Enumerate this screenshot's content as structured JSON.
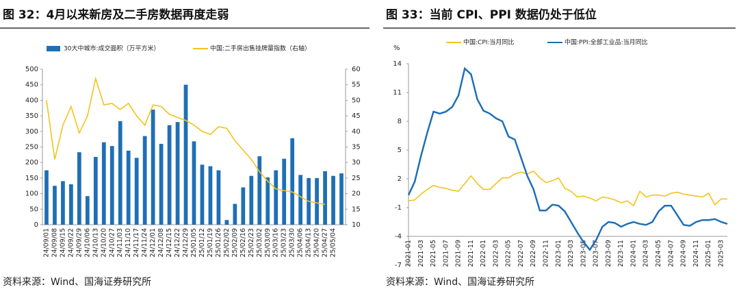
{
  "chart_data": [
    {
      "type": "bar",
      "title": "图 32：4月以来新房及二手房数据再度走弱",
      "source": "资料来源：Wind、国海证券研究所",
      "categories": [
        "24/09/01",
        "24/09/08",
        "24/09/15",
        "24/09/22",
        "24/09/29",
        "24/10/06",
        "24/10/13",
        "24/10/20",
        "24/10/27",
        "24/11/03",
        "24/11/10",
        "24/11/17",
        "24/11/24",
        "24/12/01",
        "24/12/08",
        "24/12/15",
        "24/12/22",
        "24/12/29",
        "25/01/05",
        "25/01/12",
        "25/01/19",
        "25/01/26",
        "25/02/02",
        "25/02/09",
        "25/02/16",
        "25/02/23",
        "25/03/02",
        "25/03/09",
        "25/03/16",
        "25/03/23",
        "25/03/30",
        "25/04/06",
        "25/04/13",
        "25/04/20",
        "25/04/27",
        "25/05/04",
        null
      ],
      "series": [
        {
          "name": "30大中城市:成交面积（万平方米）",
          "type": "bar",
          "color": "#1f6fb5",
          "values": [
            175,
            125,
            140,
            130,
            233,
            92,
            218,
            265,
            253,
            333,
            238,
            215,
            285,
            370,
            260,
            320,
            330,
            450,
            268,
            193,
            188,
            175,
            15,
            67,
            120,
            157,
            220,
            152,
            175,
            212,
            278,
            160,
            150,
            150,
            172,
            157,
            165
          ]
        },
        {
          "name": "中国:二手房出售挂牌量指数（右轴）",
          "type": "line",
          "axis": "y2",
          "color": "#f2c31b",
          "values": [
            50,
            31,
            42,
            48,
            39.5,
            45,
            57,
            48.5,
            49,
            47,
            49,
            45,
            42,
            48.5,
            48,
            45.5,
            44.5,
            43.5,
            42,
            40,
            39,
            41.5,
            41,
            37,
            34,
            31,
            27,
            24,
            21.5,
            21,
            20.5,
            19,
            17.5,
            17,
            16.5,
            null,
            null
          ]
        }
      ],
      "ylim": [
        0,
        500
      ],
      "yticks": [
        0,
        50,
        100,
        150,
        200,
        250,
        300,
        350,
        400,
        450,
        500
      ],
      "y2lim": [
        10,
        60
      ],
      "y2ticks": [
        10,
        15,
        20,
        25,
        30,
        35,
        40,
        45,
        50,
        55,
        60
      ],
      "grid": false
    },
    {
      "type": "line",
      "title": "图 33：当前 CPI、PPI 数据仍处于低位",
      "source": "资料来源：Wind、国海证券研究所",
      "ylabel": "%",
      "categories": [
        "2021-01",
        null,
        "2021-03",
        null,
        "2021-05",
        null,
        "2021-07",
        null,
        "2021-09",
        null,
        "2021-11",
        null,
        "2022-01",
        null,
        "2022-03",
        null,
        "2022-05",
        null,
        "2022-07",
        null,
        "2022-09",
        null,
        "2022-11",
        null,
        "2023-01",
        null,
        "2023-03",
        null,
        "2023-05",
        null,
        "2023-07",
        null,
        "2023-09",
        null,
        "2023-11",
        null,
        "2024-01",
        null,
        "2024-03",
        null,
        "2024-05",
        null,
        "2024-07",
        null,
        "2024-09",
        null,
        "2024-11",
        null,
        "2025-01",
        null,
        "2025-03",
        null
      ],
      "series": [
        {
          "name": "中国:CPI:当月同比",
          "color": "#f2c31b",
          "values": [
            -0.3,
            -0.2,
            0.4,
            0.9,
            1.3,
            1.1,
            1.0,
            0.8,
            0.7,
            1.5,
            2.3,
            1.5,
            0.9,
            0.9,
            1.5,
            2.1,
            2.1,
            2.5,
            2.7,
            2.5,
            2.8,
            2.1,
            1.6,
            1.8,
            2.1,
            1.0,
            0.7,
            0.1,
            0.2,
            0.0,
            -0.3,
            0.1,
            0.0,
            -0.2,
            -0.5,
            -0.3,
            -0.8,
            0.7,
            0.1,
            0.3,
            0.3,
            0.2,
            0.5,
            0.6,
            0.4,
            0.3,
            0.2,
            0.1,
            0.5,
            -0.7,
            -0.1,
            -0.1
          ]
        },
        {
          "name": "中国:PPI:全部工业品:当月同比",
          "color": "#1f6fb5",
          "values": [
            0.3,
            1.7,
            4.4,
            6.8,
            9.0,
            8.8,
            9.0,
            9.5,
            10.7,
            13.5,
            12.9,
            10.3,
            9.1,
            8.8,
            8.3,
            8.0,
            6.4,
            6.1,
            4.2,
            2.3,
            0.9,
            -1.3,
            -1.3,
            -0.7,
            -0.8,
            -1.4,
            -2.5,
            -3.6,
            -4.6,
            -5.4,
            -4.4,
            -3.0,
            -2.5,
            -2.6,
            -3.0,
            -2.7,
            -2.5,
            -2.7,
            -2.8,
            -2.5,
            -1.4,
            -0.8,
            -0.8,
            -1.8,
            -2.8,
            -2.9,
            -2.5,
            -2.3,
            -2.3,
            -2.2,
            -2.5,
            -2.7
          ]
        }
      ],
      "ylim": [
        -7,
        14
      ],
      "yticks": [
        -7,
        -4,
        -1,
        2,
        5,
        8,
        11,
        14
      ],
      "grid": false
    }
  ]
}
